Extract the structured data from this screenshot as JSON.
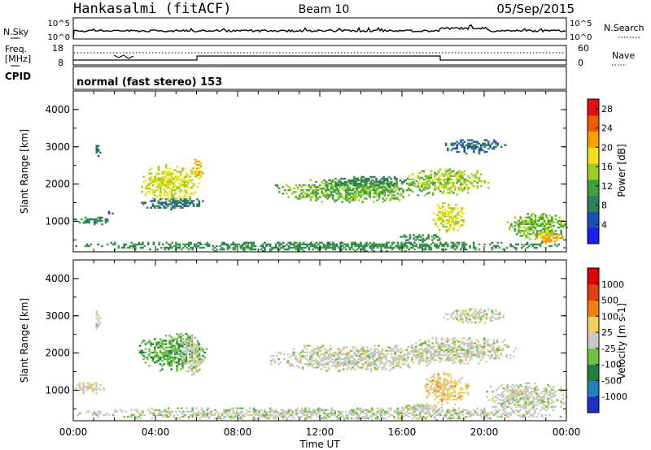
{
  "header": {
    "radar": "Hankasalmi (fitACF)",
    "beam": "Beam 10",
    "date": "05/Sep/2015"
  },
  "top_panels": {
    "nsky_label": "N.Sky",
    "nsky_ticks": [
      "10^5",
      "10^0"
    ],
    "nsearch_label": "N.Search",
    "nsearch_ticks": [
      "10^5",
      "10^0"
    ],
    "freq_label_line1": "Freq.",
    "freq_label_line2": "[MHz]",
    "freq_ticks": [
      "18",
      "8"
    ],
    "nave_label": "Nave",
    "nave_ticks": [
      "60",
      "0"
    ],
    "cpid_label": "CPID",
    "cpid_text": "normal (fast stereo) 153"
  },
  "chart_data": [
    {
      "type": "heatmap",
      "title": "",
      "ylabel": "Slant Range [km]",
      "xlabel": "",
      "xlim": [
        0,
        24
      ],
      "ylim": [
        180,
        4500
      ],
      "yticks": [
        "1000",
        "2000",
        "3000",
        "4000"
      ],
      "colorbar": {
        "label": "Power [dB]",
        "range": [
          0,
          30
        ],
        "ticks": [
          "4",
          "8",
          "12",
          "16",
          "20",
          "24",
          "28"
        ],
        "colors": [
          "#1e1ef0",
          "#1f50b4",
          "#2f7f5a",
          "#40a040",
          "#9ccf1f",
          "#f0e020",
          "#f4a000",
          "#f05a00",
          "#e01010"
        ]
      },
      "echo_regions": [
        {
          "t": [
            0.0,
            1.9
          ],
          "r": [
            900,
            1100
          ],
          "level": 9
        },
        {
          "t": [
            1.6,
            1.9
          ],
          "r": [
            1100,
            1300
          ],
          "level": 6
        },
        {
          "t": [
            3.3,
            6.0
          ],
          "r": [
            1500,
            2500
          ],
          "level": 17
        },
        {
          "t": [
            3.2,
            6.5
          ],
          "r": [
            1300,
            1600
          ],
          "level": 8
        },
        {
          "t": [
            9.8,
            17.2
          ],
          "r": [
            1500,
            2100
          ],
          "level": 13
        },
        {
          "t": [
            12.0,
            16.5
          ],
          "r": [
            1900,
            2200
          ],
          "level": 9
        },
        {
          "t": [
            16.2,
            20.2
          ],
          "r": [
            1700,
            2400
          ],
          "level": 15
        },
        {
          "t": [
            17.5,
            19.0
          ],
          "r": [
            700,
            1500
          ],
          "level": 17
        },
        {
          "t": [
            21.0,
            24.0
          ],
          "r": [
            500,
            1200
          ],
          "level": 14
        },
        {
          "t": [
            22.5,
            23.8
          ],
          "r": [
            350,
            700
          ],
          "level": 21
        },
        {
          "t": [
            15.8,
            18.0
          ],
          "r": [
            430,
            650
          ],
          "level": 10
        },
        {
          "t": [
            0.0,
            24.0
          ],
          "r": [
            180,
            450
          ],
          "level": 10
        },
        {
          "t": [
            1.0,
            1.3
          ],
          "r": [
            2600,
            3100
          ],
          "level": 6
        },
        {
          "t": [
            5.8,
            6.3
          ],
          "r": [
            2000,
            2700
          ],
          "level": 20
        },
        {
          "t": [
            18.0,
            21.0
          ],
          "r": [
            2800,
            3200
          ],
          "level": 7
        }
      ]
    },
    {
      "type": "heatmap",
      "title": "",
      "ylabel": "Slant Range [km]",
      "xlabel": "Time UT",
      "xlim": [
        0,
        24
      ],
      "ylim": [
        180,
        4500
      ],
      "xticks": [
        "00:00",
        "04:00",
        "08:00",
        "12:00",
        "16:00",
        "20:00",
        "00:00"
      ],
      "yticks": [
        "1000",
        "2000",
        "3000",
        "4000"
      ],
      "colorbar": {
        "label": "Velocity [m s-1]",
        "range": [
          -1200,
          1200
        ],
        "ticks": [
          "1000",
          "500",
          "100",
          "25",
          "-25",
          "-100",
          "-500",
          "-1000"
        ],
        "colors": [
          "#2030c0",
          "#2080c0",
          "#208040",
          "#70c040",
          "#c8c8c8",
          "#f0d060",
          "#f08010",
          "#e04010",
          "#e00000"
        ]
      },
      "echo_regions": [
        {
          "t": [
            0.0,
            1.5
          ],
          "r": [
            900,
            1200
          ],
          "level": 60
        },
        {
          "t": [
            3.2,
            6.5
          ],
          "r": [
            1500,
            2500
          ],
          "level": -350
        },
        {
          "t": [
            5.2,
            6.3
          ],
          "r": [
            1400,
            2400
          ],
          "level": 0
        },
        {
          "t": [
            9.5,
            17.5
          ],
          "r": [
            1500,
            2200
          ],
          "level": 0
        },
        {
          "t": [
            16.0,
            21.5
          ],
          "r": [
            1700,
            2400
          ],
          "level": 0
        },
        {
          "t": [
            17.0,
            19.2
          ],
          "r": [
            600,
            1500
          ],
          "level": 250
        },
        {
          "t": [
            20.0,
            24.0
          ],
          "r": [
            400,
            1200
          ],
          "level": 0
        },
        {
          "t": [
            0.0,
            24.0
          ],
          "r": [
            180,
            520
          ],
          "level": -30
        },
        {
          "t": [
            15.8,
            18.0
          ],
          "r": [
            430,
            650
          ],
          "level": 0
        },
        {
          "t": [
            1.0,
            1.3
          ],
          "r": [
            2600,
            3100
          ],
          "level": 50
        },
        {
          "t": [
            18.0,
            21.0
          ],
          "r": [
            2800,
            3200
          ],
          "level": 10
        }
      ]
    }
  ]
}
